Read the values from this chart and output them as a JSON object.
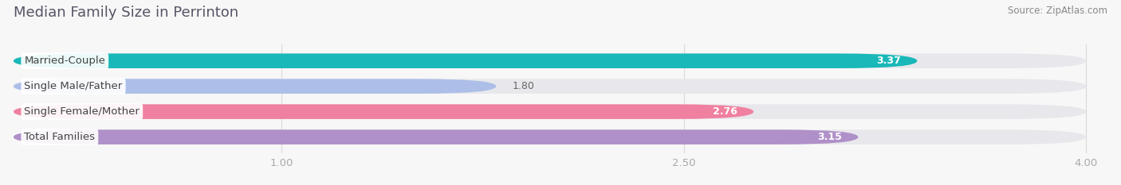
{
  "title": "Median Family Size in Perrinton",
  "source": "Source: ZipAtlas.com",
  "categories": [
    "Married-Couple",
    "Single Male/Father",
    "Single Female/Mother",
    "Total Families"
  ],
  "values": [
    3.37,
    1.8,
    2.76,
    3.15
  ],
  "bar_colors": [
    "#1ab8b8",
    "#adbfe8",
    "#f080a0",
    "#b090c8"
  ],
  "bar_bg_color": "#e8e8ec",
  "xmin": 0,
  "xmax": 4.0,
  "xticks": [
    1.0,
    2.5,
    4.0
  ],
  "xtick_labels": [
    "1.00",
    "2.50",
    "4.00"
  ],
  "bar_height": 0.58,
  "label_fontsize": 9.5,
  "value_fontsize": 9.0,
  "title_fontsize": 13,
  "source_fontsize": 8.5,
  "background_color": "#f7f7f7",
  "grid_color": "#d8d8d8",
  "title_color": "#555566",
  "source_color": "#888888",
  "label_color": "#444444",
  "value_color_inside": "#ffffff",
  "value_color_outside": "#666666"
}
